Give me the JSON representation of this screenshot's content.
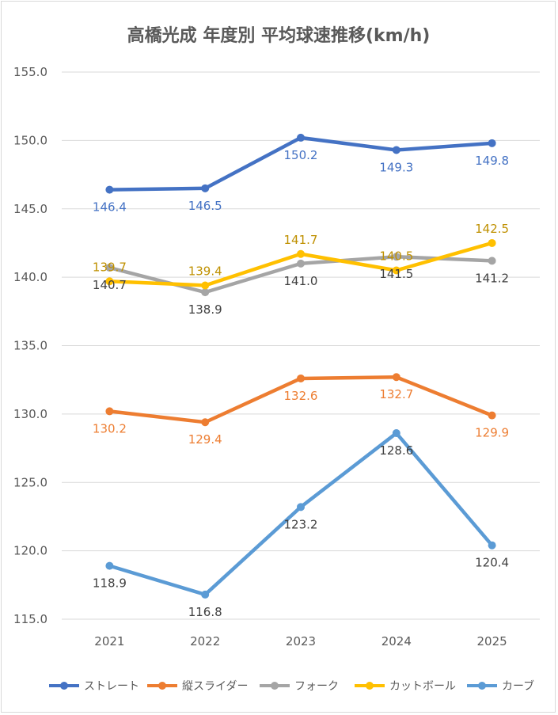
{
  "chart_data": {
    "type": "line",
    "title": "高橋光成 年度別 平均球速推移(km/h)",
    "categories": [
      "2021",
      "2022",
      "2023",
      "2024",
      "2025"
    ],
    "ylim": [
      115.0,
      155.0
    ],
    "yticks": [
      "115.0",
      "120.0",
      "125.0",
      "130.0",
      "135.0",
      "140.0",
      "145.0",
      "150.0",
      "155.0"
    ],
    "grid": true,
    "legend_position": "bottom",
    "series": [
      {
        "name": "ストレート",
        "color": "#4472c4",
        "values": [
          146.4,
          146.5,
          150.2,
          149.3,
          149.8
        ],
        "labels": [
          "146.4",
          "146.5",
          "150.2",
          "149.3",
          "149.8"
        ],
        "label_placement": [
          "below",
          "below",
          "below",
          "below",
          "below"
        ]
      },
      {
        "name": "縦スライダー",
        "color": "#ed7d31",
        "values": [
          130.2,
          129.4,
          132.6,
          132.7,
          129.9
        ],
        "labels": [
          "130.2",
          "129.4",
          "132.6",
          "132.7",
          "129.9"
        ],
        "label_placement": [
          "below",
          "below",
          "below",
          "below",
          "below"
        ]
      },
      {
        "name": "フォーク",
        "color": "#a5a5a5",
        "label_color": "#404040",
        "values": [
          140.7,
          138.9,
          141.0,
          141.5,
          141.2
        ],
        "labels": [
          "140.7",
          "138.9",
          "141.0",
          "141.5",
          "141.2"
        ],
        "label_placement": [
          "below",
          "below",
          "below",
          "below",
          "below"
        ]
      },
      {
        "name": "カットボール",
        "color": "#ffc000",
        "label_color": "#bf9000",
        "values": [
          139.7,
          139.4,
          141.7,
          140.5,
          142.5
        ],
        "labels": [
          "139.7",
          "139.4",
          "141.7",
          "140.5",
          "142.5"
        ],
        "label_placement": [
          "above",
          "above",
          "above",
          "above",
          "above"
        ]
      },
      {
        "name": "カーブ",
        "color": "#5b9bd5",
        "label_color": "#404040",
        "values": [
          118.9,
          116.8,
          123.2,
          128.6,
          120.4
        ],
        "labels": [
          "118.9",
          "116.8",
          "123.2",
          "128.6",
          "120.4"
        ],
        "label_placement": [
          "below",
          "below",
          "below",
          "below",
          "below"
        ]
      }
    ]
  }
}
